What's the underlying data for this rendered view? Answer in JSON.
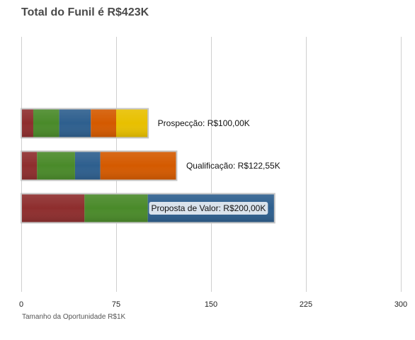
{
  "chart_data": {
    "type": "bar",
    "orientation": "horizontal",
    "stacked": true,
    "title": "Total do Funil é R$423K",
    "xlabel": "Tamanho da Oportunidade R$1K",
    "ylabel": "",
    "xlim": [
      0,
      300
    ],
    "xticks": [
      "0",
      "75",
      "150",
      "225",
      "300"
    ],
    "xtick_values": [
      0,
      75,
      150,
      225,
      300
    ],
    "grid": "vertical",
    "categories": [
      "Prospecção",
      "Qualificação",
      "Proposta de Valor"
    ],
    "category_labels": [
      "Prospecção: R$100,00K",
      "Qualificação: R$122,55K",
      "Proposta de Valor: R$200,00K"
    ],
    "totals": [
      100.0,
      122.55,
      200.0
    ],
    "series_colors": [
      "#8e2e2e",
      "#4a8a2a",
      "#2e5f8e",
      "#d45a00",
      "#e8c000"
    ],
    "series": [
      {
        "values": [
          9.5,
          12.5,
          50
        ]
      },
      {
        "values": [
          20.5,
          30,
          50
        ]
      },
      {
        "values": [
          25,
          20,
          100
        ]
      },
      {
        "values": [
          20,
          60.05,
          0
        ]
      },
      {
        "values": [
          25,
          0,
          0
        ]
      }
    ]
  }
}
